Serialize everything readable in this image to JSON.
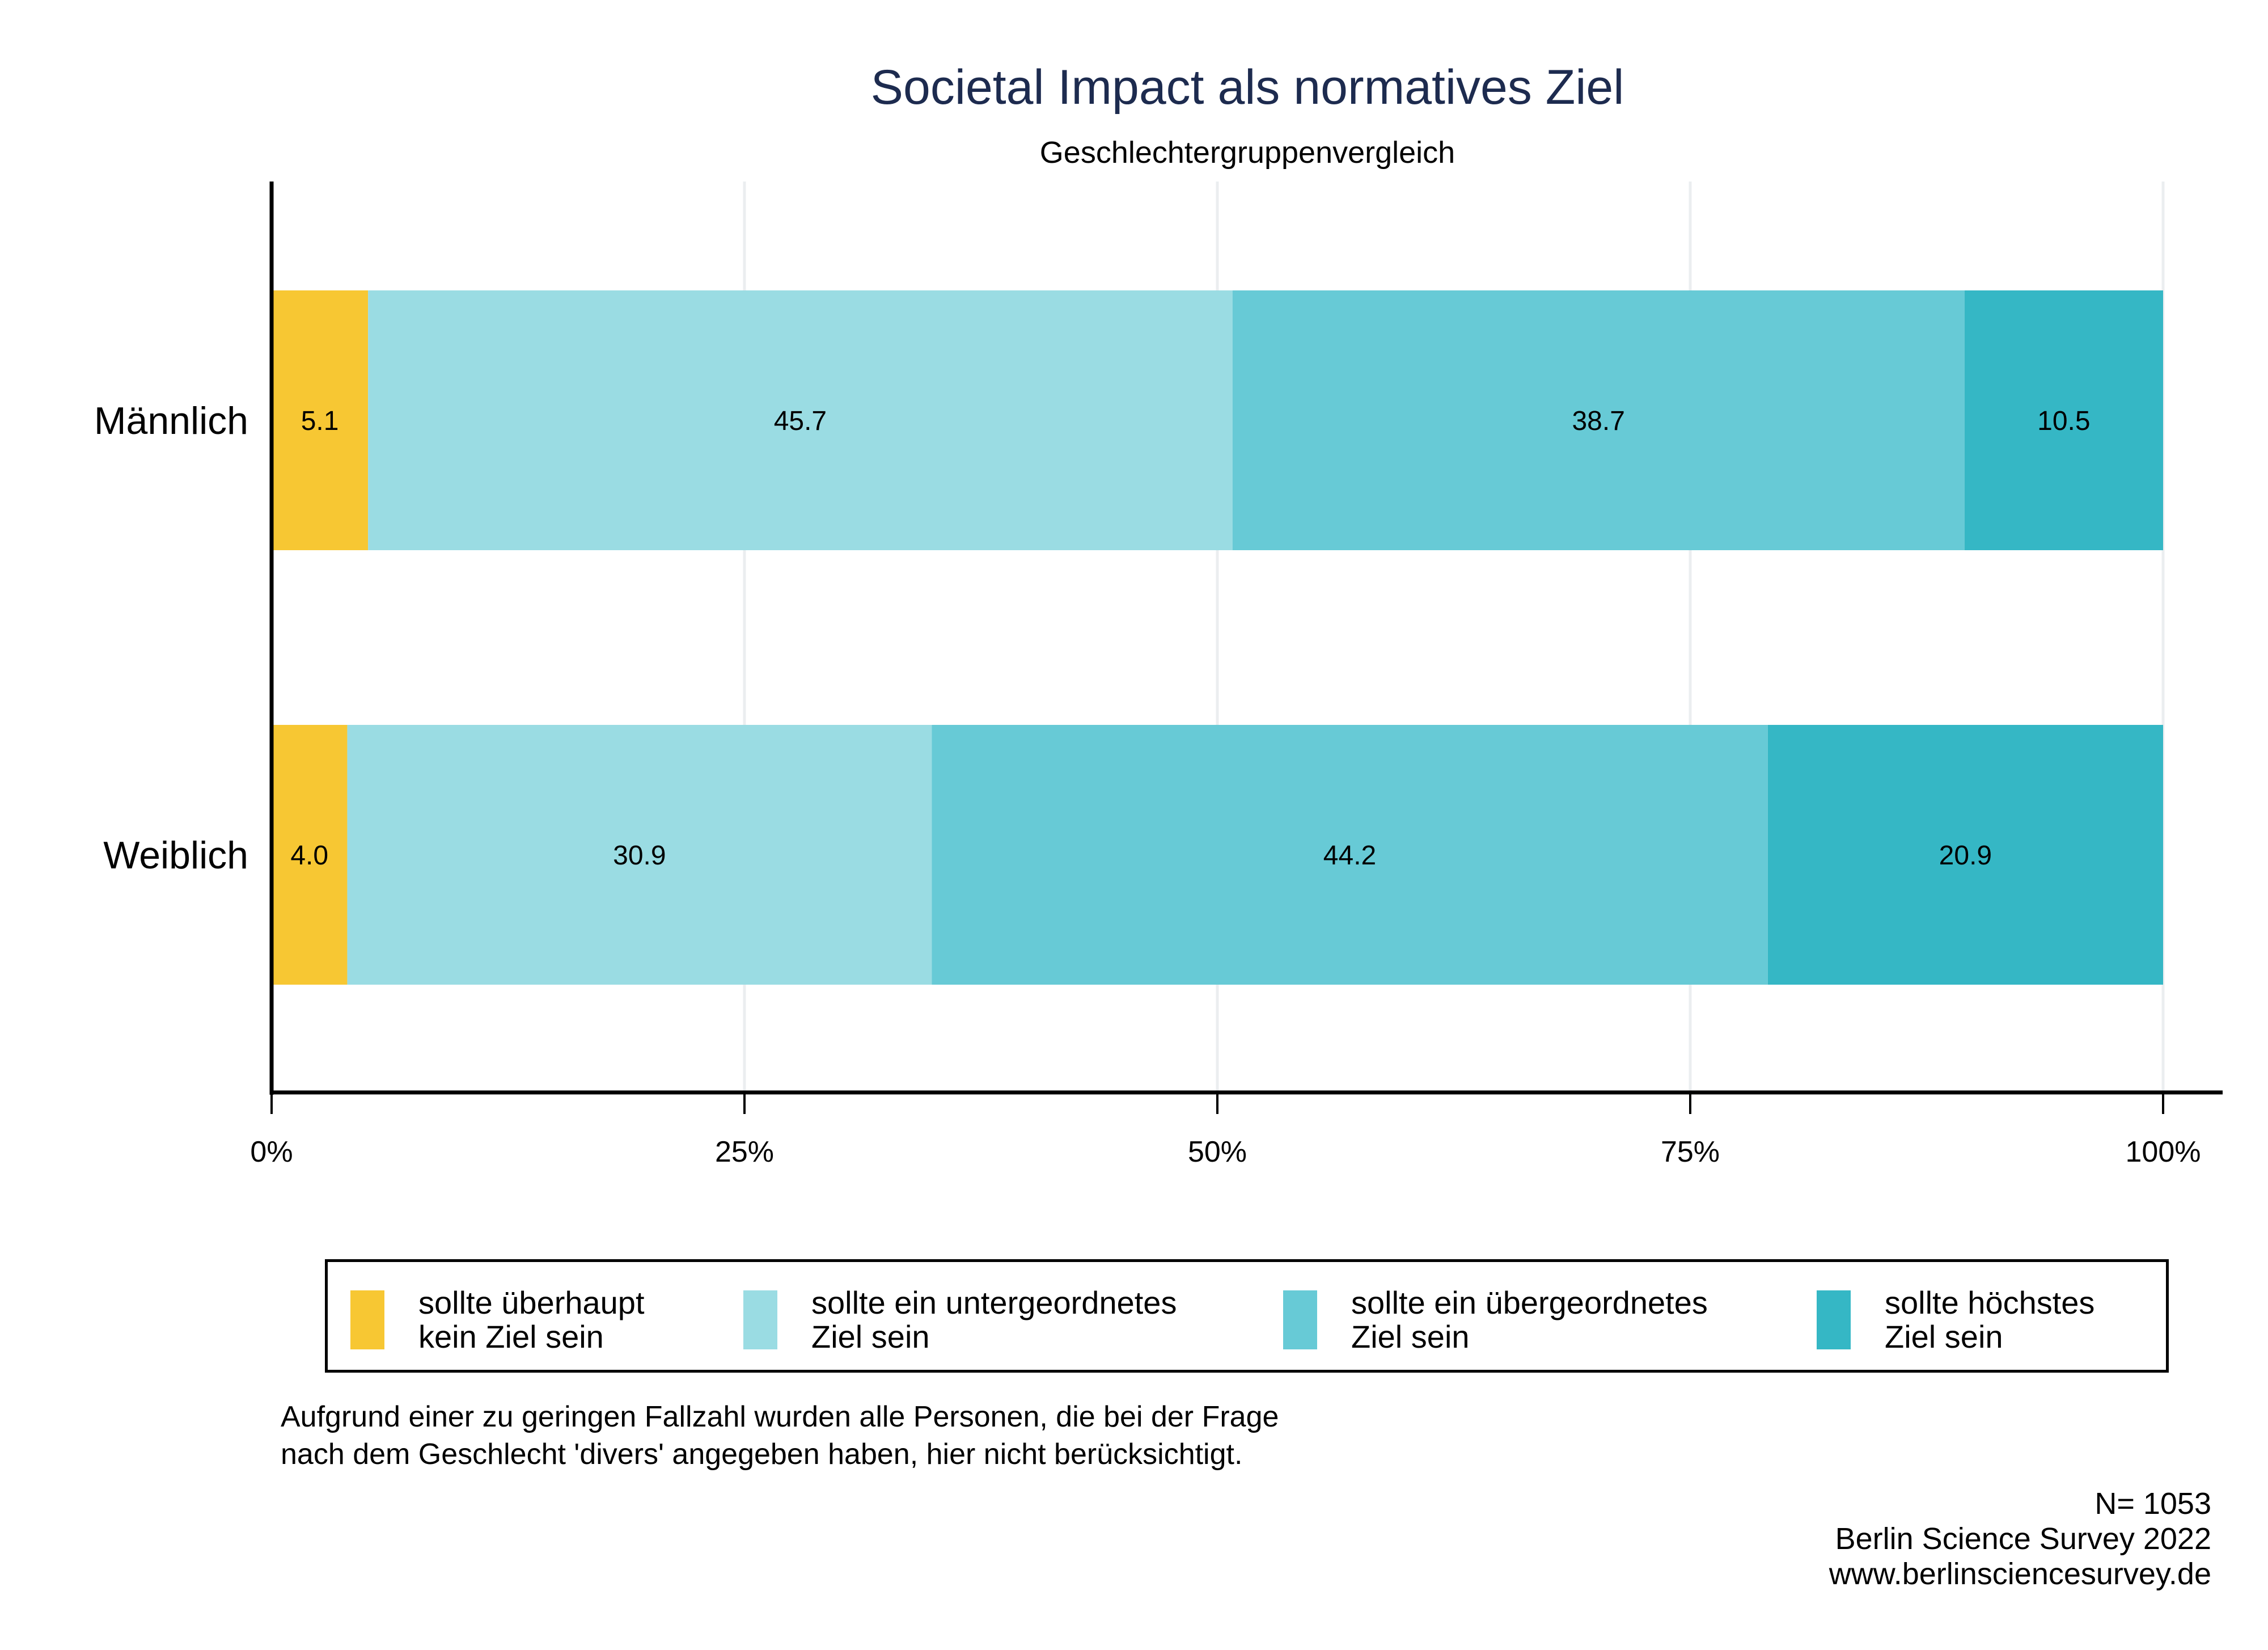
{
  "chart_data": {
    "type": "bar",
    "orientation": "horizontal",
    "stacked": true,
    "title": "Societal Impact als normatives Ziel",
    "subtitle": "Geschlechtergruppenvergleich",
    "xlabel": "",
    "ylabel": "",
    "xlim": [
      0,
      100
    ],
    "x_ticks": [
      "0%",
      "25%",
      "50%",
      "75%",
      "100%"
    ],
    "x_tick_values": [
      0,
      25,
      50,
      75,
      100
    ],
    "grid": "vertical",
    "categories": [
      "Männlich",
      "Weiblich"
    ],
    "series": [
      {
        "name": "sollte überhaupt kein Ziel sein",
        "legend_lines": [
          "sollte überhaupt",
          "kein Ziel sein"
        ],
        "color": "#f7c733",
        "values": [
          5.1,
          4.0
        ],
        "labels": [
          "5.1",
          "4.0"
        ]
      },
      {
        "name": "sollte ein untergeordnetes Ziel sein",
        "legend_lines": [
          "sollte ein untergeordnetes",
          "Ziel sein"
        ],
        "color": "#9adce3",
        "values": [
          45.7,
          30.9
        ],
        "labels": [
          "45.7",
          "30.9"
        ]
      },
      {
        "name": "sollte ein übergeordnetes Ziel sein",
        "legend_lines": [
          "sollte ein übergeordnetes",
          "Ziel sein"
        ],
        "color": "#67cad6",
        "values": [
          38.7,
          44.2
        ],
        "labels": [
          "38.7",
          "44.2"
        ]
      },
      {
        "name": "sollte höchstes Ziel sein",
        "legend_lines": [
          "sollte höchstes",
          "Ziel sein"
        ],
        "color": "#35b7c5",
        "values": [
          10.5,
          20.9
        ],
        "labels": [
          "10.5",
          "20.9"
        ]
      }
    ],
    "legend_position": "bottom"
  },
  "footnote": "Aufgrund einer zu geringen Fallzahl wurden alle Personen, die bei der Frage\nnach dem Geschlecht 'divers' angegeben haben, hier nicht berücksichtigt.",
  "credits": {
    "n": "N= 1053",
    "source": "Berlin Science Survey 2022",
    "url": "www.berlinsciencesurvey.de"
  },
  "colors": {
    "title": "#1d2b4f",
    "grid": "#ebeef0",
    "axis": "#000000"
  }
}
